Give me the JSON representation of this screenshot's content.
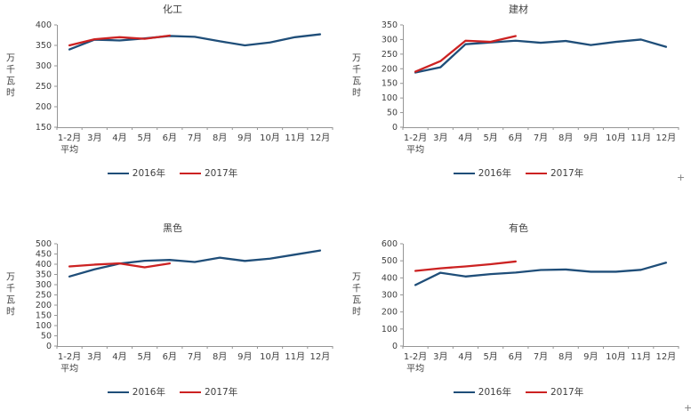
{
  "style": {
    "text_color": "#3f3f3f",
    "axis_color": "#969696",
    "series_2016_color": "#1f4e79",
    "series_2017_color": "#cc2222"
  },
  "decorations": {
    "plus_mark": "+"
  },
  "chart_data": [
    {
      "type": "line",
      "title": "化工",
      "ylabel": "万千瓦时",
      "xlabel": "",
      "ylim": [
        150,
        400
      ],
      "y_step": 50,
      "grid": false,
      "legend_position": "bottom",
      "categories": [
        "1-2月\n平均",
        "3月",
        "4月",
        "5月",
        "6月",
        "7月",
        "8月",
        "9月",
        "10月",
        "11月",
        "12月"
      ],
      "series": [
        {
          "name": "2016年",
          "color": "#1f4e79",
          "values": [
            340,
            364,
            362,
            367,
            373,
            371,
            360,
            350,
            357,
            370,
            377
          ]
        },
        {
          "name": "2017年",
          "color": "#cc2222",
          "values": [
            350,
            365,
            370,
            366,
            374
          ]
        }
      ]
    },
    {
      "type": "line",
      "title": "建材",
      "ylabel": "万千瓦时",
      "xlabel": "",
      "ylim": [
        0,
        350
      ],
      "y_step": 50,
      "grid": false,
      "legend_position": "bottom",
      "categories": [
        "1-2月\n平均",
        "3月",
        "4月",
        "5月",
        "6月",
        "7月",
        "8月",
        "9月",
        "10月",
        "11月",
        "12月"
      ],
      "series": [
        {
          "name": "2016年",
          "color": "#1f4e79",
          "values": [
            187,
            205,
            284,
            290,
            296,
            289,
            295,
            281,
            292,
            300,
            275
          ]
        },
        {
          "name": "2017年",
          "color": "#cc2222",
          "values": [
            190,
            226,
            296,
            292,
            312
          ]
        }
      ]
    },
    {
      "type": "line",
      "title": "黑色",
      "ylabel": "万千瓦时",
      "xlabel": "",
      "ylim": [
        0,
        500
      ],
      "y_step": 50,
      "grid": false,
      "legend_position": "bottom",
      "categories": [
        "1-2月\n平均",
        "3月",
        "4月",
        "5月",
        "6月",
        "7月",
        "8月",
        "9月",
        "10月",
        "11月",
        "12月"
      ],
      "series": [
        {
          "name": "2016年",
          "color": "#1f4e79",
          "values": [
            340,
            375,
            403,
            417,
            421,
            411,
            432,
            416,
            427,
            447,
            467
          ]
        },
        {
          "name": "2017年",
          "color": "#cc2222",
          "values": [
            389,
            398,
            404,
            385,
            404
          ]
        }
      ]
    },
    {
      "type": "line",
      "title": "有色",
      "ylabel": "万千瓦时",
      "xlabel": "",
      "ylim": [
        0,
        600
      ],
      "y_step": 100,
      "grid": false,
      "legend_position": "bottom",
      "categories": [
        "1-2月\n平均",
        "3月",
        "4月",
        "5月",
        "6月",
        "7月",
        "8月",
        "9月",
        "10月",
        "11月",
        "12月"
      ],
      "series": [
        {
          "name": "2016年",
          "color": "#1f4e79",
          "values": [
            358,
            430,
            408,
            422,
            431,
            446,
            449,
            436,
            436,
            447,
            489
          ]
        },
        {
          "name": "2017年",
          "color": "#cc2222",
          "values": [
            441,
            456,
            467,
            480,
            496
          ]
        }
      ]
    }
  ]
}
